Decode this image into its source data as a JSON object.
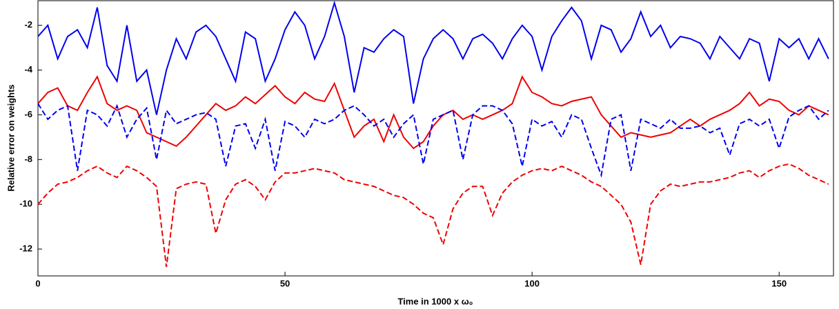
{
  "chart_data": {
    "type": "line",
    "xlabel": "Time in 1000 x ω₀",
    "ylabel": "Relative error on weights",
    "xlim": [
      0,
      161
    ],
    "ylim": [
      -13.2,
      -0.9
    ],
    "xticks": [
      0,
      50,
      100,
      150
    ],
    "yticks": [
      -12,
      -10,
      -8,
      -6,
      -4,
      -2
    ],
    "grid": false,
    "x": [
      0,
      2,
      4,
      6,
      8,
      10,
      12,
      14,
      16,
      18,
      20,
      22,
      24,
      26,
      28,
      30,
      32,
      34,
      36,
      38,
      40,
      42,
      44,
      46,
      48,
      50,
      52,
      54,
      56,
      58,
      60,
      62,
      64,
      66,
      68,
      70,
      72,
      74,
      76,
      78,
      80,
      82,
      84,
      86,
      88,
      90,
      92,
      94,
      96,
      98,
      100,
      102,
      104,
      106,
      108,
      110,
      112,
      114,
      116,
      118,
      120,
      122,
      124,
      126,
      128,
      130,
      132,
      134,
      136,
      138,
      140,
      142,
      144,
      146,
      148,
      150,
      152,
      154,
      156,
      158,
      160
    ],
    "series": [
      {
        "color": "#0000ee",
        "linestyle": "solid",
        "values": [
          -2.5,
          -2.0,
          -3.5,
          -2.5,
          -2.2,
          -3.0,
          -1.2,
          -3.8,
          -4.5,
          -2.0,
          -4.5,
          -4.0,
          -6.0,
          -4.0,
          -2.6,
          -3.5,
          -2.3,
          -2.0,
          -2.5,
          -3.5,
          -4.5,
          -2.3,
          -2.6,
          -4.5,
          -3.5,
          -2.2,
          -1.4,
          -2.0,
          -3.5,
          -2.5,
          -1.0,
          -2.5,
          -5.0,
          -3.0,
          -3.2,
          -2.6,
          -2.2,
          -2.5,
          -5.5,
          -3.5,
          -2.6,
          -2.2,
          -2.6,
          -3.5,
          -2.6,
          -2.4,
          -2.8,
          -3.5,
          -2.6,
          -2.0,
          -2.5,
          -4.0,
          -2.5,
          -1.8,
          -1.2,
          -1.8,
          -3.5,
          -2.0,
          -2.2,
          -3.2,
          -2.6,
          -1.4,
          -2.5,
          -2.0,
          -3.0,
          -2.5,
          -2.6,
          -2.8,
          -3.5,
          -2.5,
          -3.0,
          -3.5,
          -2.6,
          -2.8,
          -4.5,
          -2.6,
          -3.0,
          -2.6,
          -3.5,
          -2.6,
          -3.5
        ]
      },
      {
        "color": "#ee0000",
        "linestyle": "solid",
        "values": [
          -5.5,
          -5.0,
          -4.8,
          -5.6,
          -5.8,
          -5.0,
          -4.3,
          -5.5,
          -5.8,
          -5.6,
          -5.8,
          -6.8,
          -7.0,
          -7.2,
          -7.4,
          -7.0,
          -6.5,
          -6.0,
          -5.5,
          -5.8,
          -5.6,
          -5.2,
          -5.5,
          -5.1,
          -4.7,
          -5.2,
          -5.5,
          -5.0,
          -5.3,
          -5.4,
          -4.6,
          -5.8,
          -7.0,
          -6.5,
          -6.2,
          -7.2,
          -6.0,
          -7.0,
          -7.5,
          -7.2,
          -6.5,
          -6.0,
          -5.8,
          -6.2,
          -6.0,
          -6.2,
          -6.0,
          -5.8,
          -5.5,
          -4.3,
          -5.0,
          -5.2,
          -5.5,
          -5.6,
          -5.4,
          -5.3,
          -5.2,
          -6.0,
          -6.5,
          -7.0,
          -6.8,
          -6.9,
          -7.0,
          -6.9,
          -6.8,
          -6.5,
          -6.2,
          -6.5,
          -6.2,
          -6.0,
          -5.8,
          -5.5,
          -5.0,
          -5.6,
          -5.3,
          -5.4,
          -5.8,
          -6.0,
          -5.6,
          -5.8,
          -6.0
        ]
      },
      {
        "color": "#0000ee",
        "linestyle": "dashed",
        "values": [
          -5.5,
          -6.2,
          -5.8,
          -5.6,
          -8.5,
          -5.8,
          -6.0,
          -6.5,
          -5.6,
          -7.0,
          -6.2,
          -5.7,
          -8.0,
          -5.8,
          -6.4,
          -6.2,
          -6.0,
          -5.9,
          -6.2,
          -8.3,
          -6.5,
          -6.4,
          -7.5,
          -6.2,
          -8.5,
          -6.3,
          -6.5,
          -7.0,
          -6.2,
          -6.4,
          -6.2,
          -5.8,
          -5.6,
          -6.0,
          -6.5,
          -6.2,
          -7.0,
          -6.4,
          -6.0,
          -8.2,
          -6.2,
          -6.0,
          -5.8,
          -8.0,
          -6.0,
          -5.6,
          -5.6,
          -5.8,
          -6.4,
          -8.3,
          -6.2,
          -6.5,
          -6.3,
          -7.0,
          -6.0,
          -6.2,
          -7.5,
          -8.7,
          -6.2,
          -6.0,
          -8.5,
          -6.2,
          -6.4,
          -6.6,
          -6.2,
          -6.6,
          -6.6,
          -6.5,
          -6.8,
          -6.6,
          -7.8,
          -6.4,
          -6.2,
          -6.5,
          -6.2,
          -7.5,
          -6.1,
          -5.8,
          -5.6,
          -6.2,
          -5.8
        ]
      },
      {
        "color": "#ee0000",
        "linestyle": "dashed",
        "values": [
          -10.0,
          -9.5,
          -9.1,
          -9.0,
          -8.8,
          -8.5,
          -8.3,
          -8.6,
          -8.8,
          -8.3,
          -8.5,
          -8.8,
          -9.2,
          -12.8,
          -9.3,
          -9.1,
          -9.0,
          -9.1,
          -11.3,
          -9.8,
          -9.1,
          -8.9,
          -9.2,
          -9.8,
          -9.0,
          -8.6,
          -8.6,
          -8.5,
          -8.4,
          -8.5,
          -8.6,
          -8.9,
          -9.0,
          -9.1,
          -9.2,
          -9.4,
          -9.6,
          -9.7,
          -10.0,
          -10.4,
          -10.6,
          -11.8,
          -10.2,
          -9.5,
          -9.2,
          -9.2,
          -10.5,
          -9.5,
          -9.0,
          -8.7,
          -8.5,
          -8.4,
          -8.5,
          -8.3,
          -8.5,
          -8.7,
          -9.0,
          -9.2,
          -9.6,
          -10.0,
          -10.8,
          -12.7,
          -10.0,
          -9.4,
          -9.1,
          -9.2,
          -9.1,
          -9.0,
          -9.0,
          -8.9,
          -8.8,
          -8.6,
          -8.5,
          -8.8,
          -8.5,
          -8.3,
          -8.2,
          -8.4,
          -8.7,
          -8.9,
          -9.1
        ]
      }
    ]
  }
}
